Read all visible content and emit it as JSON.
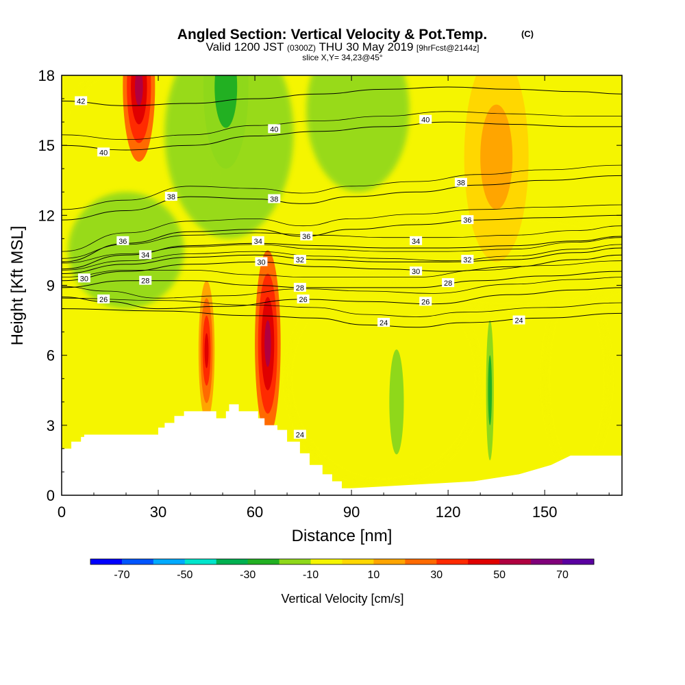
{
  "chart_data": {
    "type": "heatmap",
    "title": "Angled Section: Vertical Velocity & Pot.Temp.",
    "title_mark": "(C)",
    "subtitle_main_a": "Valid 1200 JST",
    "subtitle_small_a": "(0300Z)",
    "subtitle_main_b": "THU 30 May 2019",
    "subtitle_small_b": "[9hrFcst@2144z]",
    "subtitle2": "slice X,Y= 34,23@45°",
    "xlabel": "Distance [nm]",
    "ylabel": "Height [Kft MSL]",
    "xlim": [
      0,
      174
    ],
    "ylim": [
      0,
      18
    ],
    "x_ticks": [
      "0",
      "30",
      "60",
      "90",
      "120",
      "150"
    ],
    "y_ticks": [
      "0",
      "3",
      "6",
      "9",
      "12",
      "15",
      "18"
    ],
    "colorbar": {
      "label": "Vertical Velocity [cm/s]",
      "range": [
        -80,
        80
      ],
      "tick_labels": [
        "-70",
        "-50",
        "-30",
        "-10",
        "10",
        "30",
        "50",
        "70"
      ],
      "colors": [
        "#0000ff",
        "#0055ff",
        "#00aaff",
        "#00e5cc",
        "#00b050",
        "#22b022",
        "#8fd81a",
        "#f5f500",
        "#ffd700",
        "#ffa500",
        "#ff6a00",
        "#ff2a00",
        "#e00000",
        "#b00040",
        "#80007a",
        "#5a00a0"
      ]
    },
    "terrain_profile": {
      "x": [
        0,
        3,
        3,
        6,
        6,
        7,
        7,
        30,
        30,
        32,
        32,
        35,
        35,
        38,
        38,
        48,
        48,
        51,
        51,
        52,
        52,
        55,
        55,
        61,
        61,
        63,
        63,
        67,
        67,
        70,
        70,
        74,
        74,
        77,
        77,
        81,
        81,
        84,
        84,
        87,
        87,
        90,
        90,
        128,
        128,
        142,
        142,
        152,
        152,
        158,
        158,
        174
      ],
      "y": [
        2.0,
        2.0,
        2.3,
        2.3,
        2.5,
        2.5,
        2.6,
        2.6,
        2.9,
        2.9,
        3.1,
        3.1,
        3.4,
        3.4,
        3.6,
        3.6,
        3.3,
        3.3,
        3.6,
        3.6,
        3.9,
        3.9,
        3.6,
        3.6,
        3.3,
        3.3,
        3.0,
        3.0,
        2.8,
        2.8,
        2.3,
        2.3,
        1.8,
        1.8,
        1.3,
        1.3,
        0.9,
        0.9,
        0.6,
        0.6,
        0.3,
        0.3,
        0.3,
        0.6,
        0.6,
        0.9,
        0.9,
        1.3,
        1.3,
        1.7,
        1.7,
        1.7
      ]
    },
    "vertical_velocity_features": [
      {
        "name": "upper updraft",
        "x": 24,
        "y": 17.5,
        "rx": 5,
        "ry": 3.2,
        "value": 50
      },
      {
        "name": "mid updraft",
        "x": 45,
        "y": 6.2,
        "rx": 2.5,
        "ry": 3.0,
        "value": 40
      },
      {
        "name": "main updraft",
        "x": 64,
        "y": 6.5,
        "rx": 4,
        "ry": 4.0,
        "value": 55
      },
      {
        "name": "upper downdraft",
        "x": 51,
        "y": 17.5,
        "rx": 7,
        "ry": 3.5,
        "value": -30
      },
      {
        "name": "narrow downdraft",
        "x": 133,
        "y": 4.5,
        "rx": 1.2,
        "ry": 3.0,
        "value": -30
      },
      {
        "name": "low downdraft",
        "x": 104,
        "y": 4.0,
        "rx": 3,
        "ry": 3.0,
        "value": -20
      },
      {
        "name": "upper right updraft",
        "x": 135,
        "y": 14.5,
        "rx": 10,
        "ry": 4.5,
        "value": 15
      }
    ],
    "potential_temperature_contours": [
      {
        "value": 24,
        "x": [
          0,
          30,
          60,
          78,
          95,
          110,
          125,
          150,
          174
        ],
        "y": [
          8.0,
          7.9,
          7.7,
          7.6,
          7.3,
          7.2,
          7.4,
          7.6,
          7.8
        ],
        "labels": [
          {
            "x": 100,
            "y": 7.4
          },
          {
            "x": 142,
            "y": 7.5
          },
          {
            "x": 74,
            "y": 2.6
          }
        ]
      },
      {
        "value": 26,
        "x": [
          0,
          14,
          30,
          50,
          75,
          95,
          115,
          140,
          160,
          174
        ],
        "y": [
          8.5,
          8.3,
          8.0,
          8.1,
          8.4,
          8.3,
          8.2,
          8.6,
          8.8,
          8.9
        ],
        "labels": [
          {
            "x": 13,
            "y": 8.4
          },
          {
            "x": 75,
            "y": 8.4
          },
          {
            "x": 113,
            "y": 8.3
          }
        ]
      },
      {
        "value": 28,
        "x": [
          0,
          20,
          40,
          60,
          75,
          90,
          110,
          130,
          150,
          174
        ],
        "y": [
          8.9,
          9.2,
          9.2,
          9.0,
          8.9,
          8.9,
          8.9,
          9.2,
          9.4,
          9.6
        ],
        "labels": [
          {
            "x": 26,
            "y": 9.2
          },
          {
            "x": 74,
            "y": 8.9
          },
          {
            "x": 120,
            "y": 9.1
          }
        ]
      },
      {
        "value": 30,
        "x": [
          0,
          20,
          40,
          60,
          80,
          100,
          120,
          140,
          160,
          174
        ],
        "y": [
          9.2,
          9.6,
          9.9,
          10.0,
          9.8,
          9.7,
          9.6,
          9.8,
          10.1,
          10.3
        ],
        "labels": [
          {
            "x": 7,
            "y": 9.3
          },
          {
            "x": 62,
            "y": 10.0
          },
          {
            "x": 110,
            "y": 9.6
          }
        ]
      },
      {
        "value": 32,
        "x": [
          0,
          20,
          40,
          60,
          80,
          100,
          120,
          140,
          160,
          174
        ],
        "y": [
          9.5,
          9.9,
          10.2,
          10.3,
          10.1,
          10.0,
          10.0,
          10.1,
          10.4,
          10.6
        ],
        "labels": [
          {
            "x": 74,
            "y": 10.1
          },
          {
            "x": 126,
            "y": 10.1
          }
        ]
      },
      {
        "value": 34,
        "x": [
          0,
          20,
          40,
          60,
          80,
          100,
          120,
          140,
          160,
          174
        ],
        "y": [
          9.7,
          10.3,
          10.7,
          10.8,
          10.7,
          10.6,
          10.6,
          10.7,
          10.9,
          11.1
        ],
        "labels": [
          {
            "x": 26,
            "y": 10.3
          },
          {
            "x": 61,
            "y": 10.9
          },
          {
            "x": 110,
            "y": 10.9
          }
        ]
      },
      {
        "value": 36,
        "x": [
          0,
          20,
          40,
          60,
          75,
          90,
          110,
          130,
          150,
          174
        ],
        "y": [
          10.0,
          10.8,
          11.3,
          11.4,
          11.1,
          11.4,
          11.6,
          11.8,
          11.9,
          12.0
        ],
        "labels": [
          {
            "x": 19,
            "y": 10.9
          },
          {
            "x": 76,
            "y": 11.1
          },
          {
            "x": 126,
            "y": 11.8
          }
        ]
      },
      {
        "value": 38,
        "x": [
          0,
          20,
          40,
          60,
          75,
          90,
          110,
          130,
          150,
          174
        ],
        "y": [
          11.8,
          12.2,
          12.8,
          12.7,
          12.5,
          12.8,
          13.0,
          13.3,
          13.5,
          13.7
        ],
        "labels": [
          {
            "x": 34,
            "y": 12.8
          },
          {
            "x": 66,
            "y": 12.7
          },
          {
            "x": 124,
            "y": 13.4
          }
        ]
      },
      {
        "value": 40,
        "x": [
          0,
          20,
          40,
          60,
          80,
          100,
          120,
          140,
          160,
          174
        ],
        "y": [
          15.0,
          14.8,
          15.0,
          15.4,
          15.6,
          15.8,
          16.0,
          15.9,
          15.8,
          15.8
        ],
        "labels": [
          {
            "x": 13,
            "y": 14.7
          },
          {
            "x": 66,
            "y": 15.7
          },
          {
            "x": 113,
            "y": 16.1
          }
        ]
      },
      {
        "value": 42,
        "x": [
          0,
          20,
          40,
          60,
          80,
          100,
          120,
          140,
          160,
          174
        ],
        "y": [
          16.9,
          16.7,
          16.8,
          17.0,
          17.2,
          17.4,
          17.5,
          17.4,
          17.3,
          17.2
        ],
        "labels": [
          {
            "x": 6,
            "y": 16.9
          }
        ]
      }
    ]
  }
}
